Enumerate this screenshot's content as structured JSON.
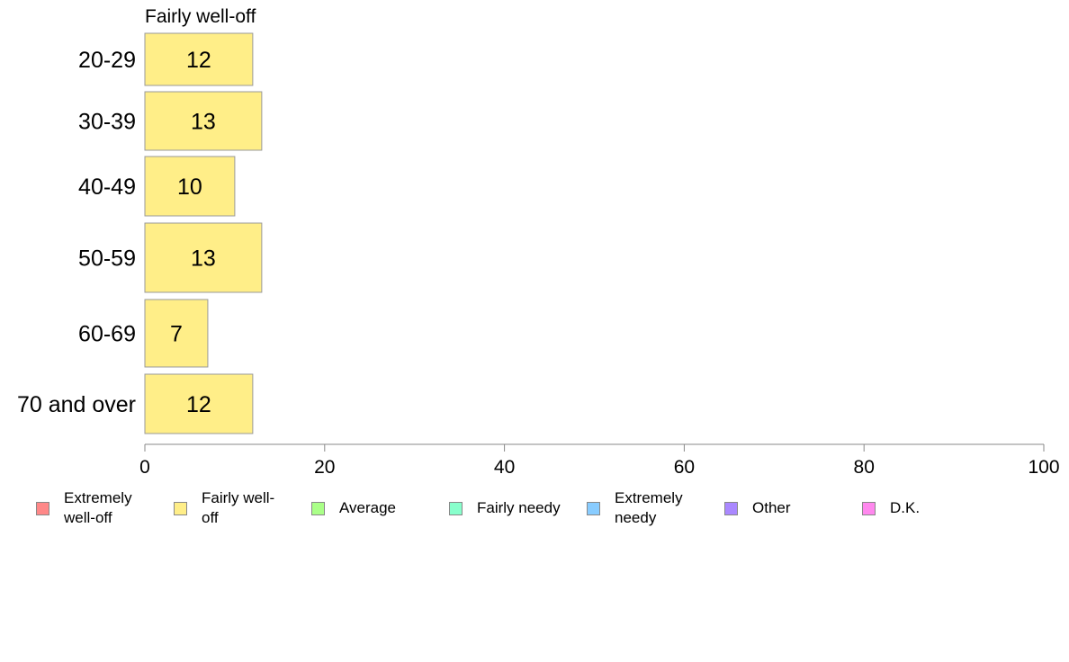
{
  "chart_data": {
    "type": "bar",
    "orientation": "horizontal",
    "title": "Fairly well-off",
    "categories": [
      "20-29",
      "30-39",
      "40-49",
      "50-59",
      "60-69",
      "70 and over"
    ],
    "series": [
      {
        "name": "Fairly well-off",
        "values": [
          12,
          13,
          10,
          13,
          7,
          12
        ],
        "color": "#ffee88"
      }
    ],
    "xlim": [
      0,
      100
    ],
    "xticks": [
      0,
      20,
      40,
      60,
      80,
      100
    ],
    "grid": false,
    "legend_placement": "bottom"
  },
  "legend": [
    {
      "label": "Extremely well-off",
      "color": "#ff8888"
    },
    {
      "label": "Fairly well-off",
      "color": "#ffee88"
    },
    {
      "label": "Average",
      "color": "#aaff88"
    },
    {
      "label": "Fairly needy",
      "color": "#88ffcc"
    },
    {
      "label": "Extremely needy",
      "color": "#88ccff"
    },
    {
      "label": "Other",
      "color": "#aa88ff"
    },
    {
      "label": "D.K.",
      "color": "#ff88ee"
    }
  ]
}
